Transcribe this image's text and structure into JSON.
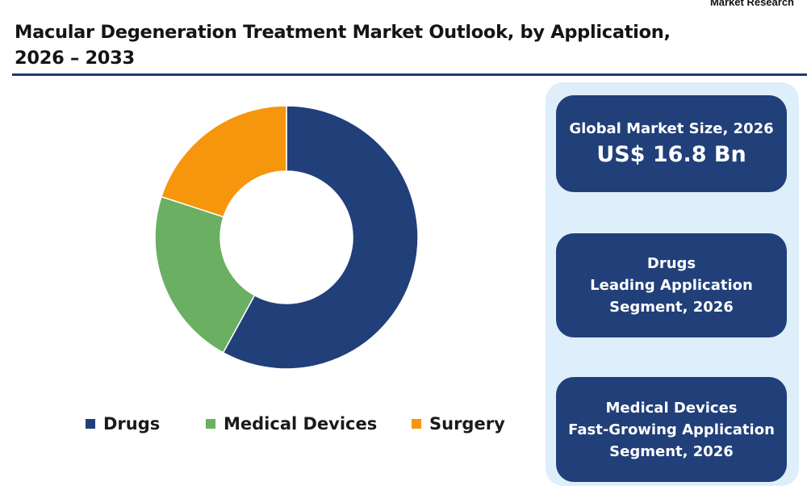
{
  "brand": "Market Research",
  "title_line1": "Macular Degeneration Treatment Market Outlook, by Application,",
  "title_line2": "2026 – 2033",
  "chart_data": {
    "type": "pie",
    "donut": true,
    "categories": [
      "Drugs",
      "Medical Devices",
      "Surgery"
    ],
    "values": [
      58,
      22,
      20
    ],
    "colors": [
      "#213f79",
      "#6aaf62",
      "#f6960d"
    ],
    "legend_position": "bottom"
  },
  "cards": {
    "market_size": {
      "label": "Global Market Size, 2026",
      "value": "US$ 16.8 Bn"
    },
    "leading": {
      "line1": "Drugs",
      "line2": "Leading Application",
      "line3": "Segment, 2026"
    },
    "fast_growing": {
      "line1": "Medical Devices",
      "line2": "Fast-Growing Application",
      "line3": "Segment, 2026"
    }
  }
}
